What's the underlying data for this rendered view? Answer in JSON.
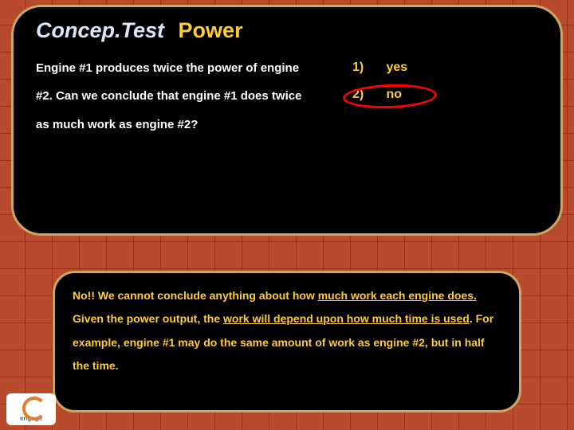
{
  "title": {
    "concep": "Concep.Test",
    "power": "Power"
  },
  "question": "Engine #1 produces twice the power of engine #2.  Can we conclude that engine #1 does twice as much work as engine #2?",
  "answers": [
    {
      "num": "1)",
      "label": "yes"
    },
    {
      "num": "2)",
      "label": "no"
    }
  ],
  "highlighted_answer_index": 1,
  "explanation": {
    "lead": "No!!  We cannot conclude anything about how ",
    "u1": "much work each engine does.",
    "mid1": "  Given the power output, the ",
    "u2": "work will depend upon how much time is used",
    "mid2": ".   For example, engine #1 may do the same amount of work as engine #2, but in half the time."
  },
  "logo": {
    "text": "engage"
  },
  "colors": {
    "bg": "#b84a2e",
    "grid": "#8a3520",
    "panel_bg": "#000000",
    "panel_border": "#c9a960",
    "title_left": "#d8e8f5",
    "accent": "#ffcc33",
    "body_text": "#ffffff",
    "highlight_ring": "#ff0000"
  }
}
